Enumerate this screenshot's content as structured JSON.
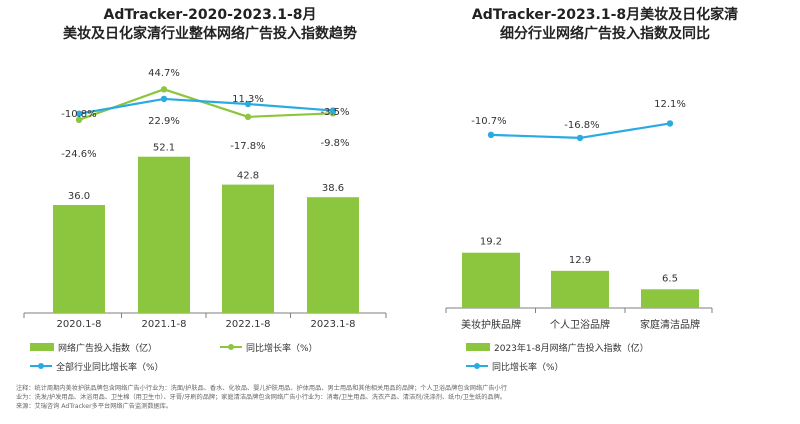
{
  "colors": {
    "bar": "#8CC63F",
    "yoy_line": "#8CC63F",
    "overall_line": "#29ABE2",
    "axis": "#7F7F7F"
  },
  "chart_data": [
    {
      "type": "bar",
      "title_line1": "AdTracker-2020-2023.1-8月",
      "title_line2": "美妆及日化家清行业整体网络广告投入指数趋势",
      "categories": [
        "2020.1-8",
        "2021.1-8",
        "2022.1-8",
        "2023.1-8"
      ],
      "series": [
        {
          "name": "网络广告投入指数（亿）",
          "type": "bar",
          "values": [
            36.0,
            52.1,
            42.8,
            38.6
          ],
          "labels": [
            "36.0",
            "52.1",
            "42.8",
            "38.6"
          ]
        },
        {
          "name": "同比增长率（%）",
          "type": "line",
          "values": [
            -24.6,
            44.7,
            -17.8,
            -9.8
          ],
          "labels": [
            "-24.6%",
            "44.7%",
            "-17.8%",
            "-9.8%"
          ]
        },
        {
          "name": "全部行业同比增长率（%）",
          "type": "line",
          "values": [
            -10.8,
            22.9,
            11.3,
            -3.5
          ],
          "labels": [
            "-10.8%",
            "22.9%",
            "11.3%",
            "-3.5%"
          ]
        }
      ]
    },
    {
      "type": "bar",
      "title_line1": "AdTracker-2023.1-8月美妆及日化家清",
      "title_line2": "细分行业网络广告投入指数及同比",
      "categories": [
        "美妆护肤品牌",
        "个人卫浴品牌",
        "家庭清洁品牌"
      ],
      "series": [
        {
          "name": "2023年1-8月网络广告投入指数（亿）",
          "type": "bar",
          "values": [
            19.2,
            12.9,
            6.5
          ],
          "labels": [
            "19.2",
            "12.9",
            "6.5"
          ]
        },
        {
          "name": "同比增长率（%）",
          "type": "line",
          "values": [
            -10.7,
            -16.8,
            12.1
          ],
          "labels": [
            "-10.7%",
            "-16.8%",
            "12.1%"
          ]
        }
      ]
    }
  ],
  "notes": {
    "line1": "注释：统计周期内美妆护肤品牌包含网络广告小行业为：洗面/护肤品、香水、化妆品、婴儿护肤用品、护体用品、男士用品和其他相关用品的品牌；个人卫浴品牌包含网络广告小行",
    "line2": "业为：洗发/护发用品、沐浴用品、卫生棉（用卫生巾）、牙膏/牙刷的品牌；家庭清洁品牌包含网络广告小行业为：消毒/卫生用品、洗衣产品、清洁剂/洗涤剂、纸巾/卫生纸的品牌。",
    "line3": "来源：艾瑞咨询 AdTracker多平台网络广告监测数据库。"
  }
}
